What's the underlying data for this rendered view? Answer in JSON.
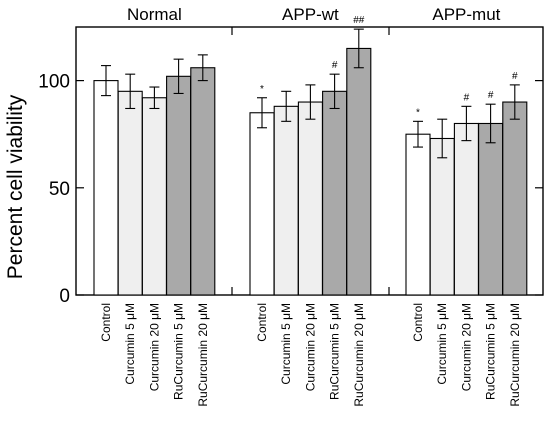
{
  "chart_data": {
    "type": "bar",
    "ylabel": "Percent cell viability",
    "ylim": [
      0,
      125
    ],
    "yticks": [
      0,
      50,
      100
    ],
    "grid": false,
    "categories": [
      "Control",
      "Curcumin 5 μM",
      "Curcumin 20 μM",
      "RuCurcumin 5 μM",
      "RuCurcumin 20 μM"
    ],
    "category_colors": [
      "#ffffff",
      "#efefef",
      "#efefef",
      "#a9a9a9",
      "#a9a9a9"
    ],
    "groups": [
      {
        "name": "Normal",
        "values": [
          100,
          95,
          92,
          102,
          106
        ],
        "errors": [
          7,
          8,
          5,
          8,
          6
        ],
        "marks": [
          "",
          "",
          "",
          "",
          ""
        ]
      },
      {
        "name": "APP-wt",
        "values": [
          85,
          88,
          90,
          95,
          115
        ],
        "errors": [
          7,
          7,
          8,
          8,
          9
        ],
        "marks": [
          "*",
          "",
          "",
          "#",
          "##"
        ]
      },
      {
        "name": "APP-mut",
        "values": [
          75,
          73,
          80,
          80,
          90
        ],
        "errors": [
          6,
          9,
          8,
          9,
          8
        ],
        "marks": [
          "*",
          "",
          "#",
          "#",
          "#"
        ]
      }
    ]
  }
}
